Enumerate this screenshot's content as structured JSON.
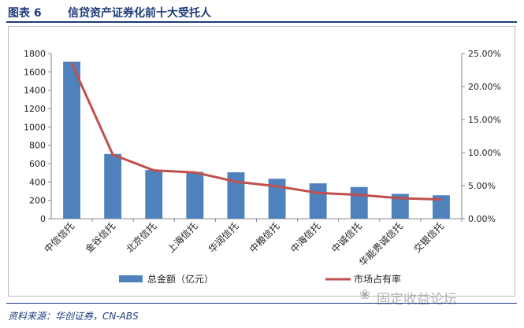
{
  "header": {
    "figure_label": "图表 6",
    "title": "信贷资产证券化前十大受托人"
  },
  "footer": {
    "source": "资料来源：华创证券，CN-ABS"
  },
  "watermark": {
    "text": "固定收益论坛",
    "icon": "wechat-icon"
  },
  "colors": {
    "bar": "#4f81bd",
    "line": "#c0504d",
    "header": "#1f3a7a"
  },
  "chart_data": {
    "type": "bar",
    "categories": [
      "中信信托",
      "金谷信托",
      "北京信托",
      "上海信托",
      "华润信托",
      "中粮信托",
      "中海信托",
      "中诚信托",
      "华能贵诚信托",
      "交银信托"
    ],
    "series": [
      {
        "name": "总金额（亿元）",
        "type": "bar",
        "axis": "left",
        "values": [
          1710,
          705,
          530,
          510,
          505,
          435,
          385,
          345,
          270,
          255
        ]
      },
      {
        "name": "市场占有率",
        "type": "line",
        "axis": "right",
        "values": [
          23.5,
          9.7,
          7.3,
          7.0,
          5.6,
          4.9,
          3.9,
          3.6,
          3.1,
          2.9
        ]
      }
    ],
    "left_axis": {
      "ylim": [
        0,
        1800
      ],
      "ticks": [
        "0",
        "200",
        "400",
        "600",
        "800",
        "1000",
        "1200",
        "1400",
        "1600",
        "1800"
      ]
    },
    "right_axis": {
      "ylim": [
        0,
        25
      ],
      "ticks": [
        "0.00%",
        "5.00%",
        "10.00%",
        "15.00%",
        "20.00%",
        "25.00%"
      ]
    },
    "grid": false,
    "legend_position": "bottom"
  }
}
